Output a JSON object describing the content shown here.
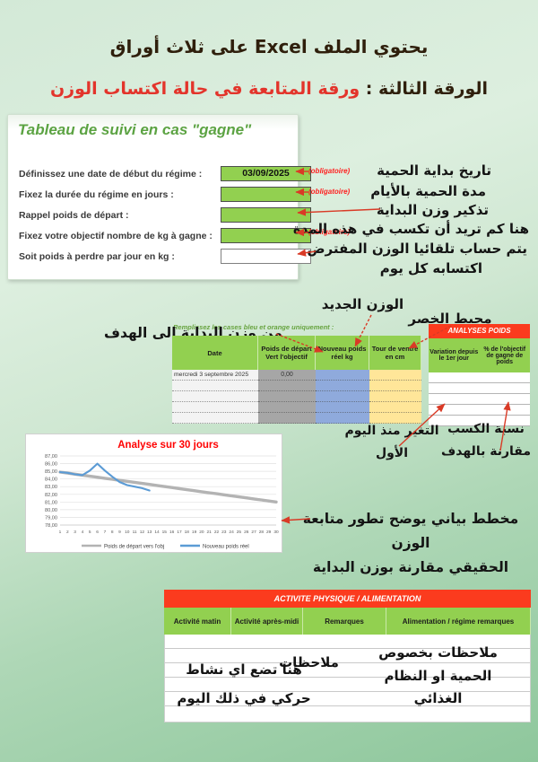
{
  "page": {
    "heading1": "يحتوي الملف Excel على  ثلاث أوراق",
    "heading2_prefix": "الورقة الثالثة :",
    "heading2_main": "ورقة المتابعة في حالة اكتساب الوزن"
  },
  "form": {
    "title": "Tableau de suivi en cas \"gagne\"",
    "rows": [
      {
        "label": "Définissez une date de début du régime :",
        "value": "03/09/2025",
        "note": "(obligatoire)"
      },
      {
        "label": "Fixez la durée du régime en jours :",
        "value": "",
        "note": "(obligatoire)"
      },
      {
        "label": "Rappel poids de départ :",
        "value": "",
        "note": ""
      },
      {
        "label": "Fixez votre objectif nombre de kg à gagne :",
        "value": "",
        "note": "(obligatoire)"
      },
      {
        "label": "Soit poids à perdre par jour en kg :",
        "value": "",
        "note": ""
      }
    ],
    "annotations": {
      "a1": "تاريخ بداية الحمية",
      "a2": "مدة الحمية بالأيام",
      "a3": "تذكير وزن البداية",
      "a4": "هنا كم تريد أن تكسب في هذه المدة",
      "a5": "يتم حساب تلقائيا الوزن المفترض",
      "a6": "اكتسابه كل يوم"
    }
  },
  "tracking": {
    "instruction": "Remplissez les cases bleu et orange uniquement :",
    "ann_new_weight": "الوزن الجديد",
    "ann_waist": "محيط الخصر",
    "ann_from_start": "من وزن البداية الى الهدف",
    "headers": [
      "Date",
      "Poids de départ Vert l'objectif",
      "Nouveau poids réel kg",
      "Tour de ventre en cm"
    ],
    "row1_date": "mercredi 3 septembre 2025",
    "row1_value": "0,00",
    "analyses": {
      "title": "ANALYSES POIDS",
      "col1": "Variation depuis le 1er jour",
      "col2": "% de l'objectif de gagne de poids"
    },
    "ann_variation_l1": "التغير منذ اليوم",
    "ann_variation_l2": "الأول",
    "ann_percent_l1": "نسبة الكسب",
    "ann_percent_l2": "مقارنة بالهدف"
  },
  "chart_note": {
    "line1": "مخطط بياني يوضح تطور متابعة الوزن",
    "line2": "الحقيقي مقارنة بوزن البداية"
  },
  "chart_data": {
    "type": "line",
    "title": "Analyse sur 30 jours",
    "title_color": "#ff0000",
    "x": [
      1,
      2,
      3,
      4,
      5,
      6,
      7,
      8,
      9,
      10,
      11,
      12,
      13,
      14,
      15,
      16,
      17,
      18,
      19,
      20,
      21,
      22,
      23,
      24,
      25,
      26,
      27,
      28,
      29,
      30
    ],
    "ylim": [
      78,
      87
    ],
    "yticks": [
      "87,00",
      "86,00",
      "85,00",
      "84,00",
      "83,00",
      "82,00",
      "81,00",
      "80,00",
      "79,00",
      "78,00"
    ],
    "grid": true,
    "legend_position": "bottom",
    "series": [
      {
        "name": "Poids de départ vers l'obj",
        "color": "#b3b3b3",
        "values": [
          84.9,
          84.77,
          84.63,
          84.5,
          84.36,
          84.23,
          84.09,
          83.96,
          83.82,
          83.69,
          83.56,
          83.42,
          83.29,
          83.15,
          83.02,
          82.88,
          82.75,
          82.61,
          82.48,
          82.34,
          82.21,
          82.08,
          81.94,
          81.81,
          81.67,
          81.54,
          81.4,
          81.27,
          81.13,
          81.0
        ]
      },
      {
        "name": "Nouveau poids réel",
        "color": "#5b9bd5",
        "values": [
          84.9,
          84.8,
          84.6,
          84.5,
          85.1,
          86.0,
          85.1,
          84.3,
          83.6,
          83.2,
          83.0,
          82.8,
          82.5,
          null,
          null,
          null,
          null,
          null,
          null,
          null,
          null,
          null,
          null,
          null,
          null,
          null,
          null,
          null,
          null,
          null
        ]
      }
    ]
  },
  "activity": {
    "title": "ACTIVITE PHYSIQUE / ALIMENTATION",
    "headers": [
      "Activité matin",
      "Activité après-midi",
      "Remarques",
      "Alimentation / régime remarques"
    ],
    "note_left_l1": "هنا تضع اي نشاط",
    "note_left_l2": "حركي في ذلك اليوم",
    "note_center": "ملاحظات",
    "note_right_l1": "ملاحظات بخصوص",
    "note_right_l2": "الحمية او النظام",
    "note_right_l3": "الغذائي"
  },
  "colors": {
    "accent_green": "#92d050",
    "accent_red": "#fb3b1e",
    "arrow_red": "#d93a26",
    "col_gray": "#a6a6a6",
    "col_blue": "#8faadc",
    "col_orange": "#ffe699"
  }
}
